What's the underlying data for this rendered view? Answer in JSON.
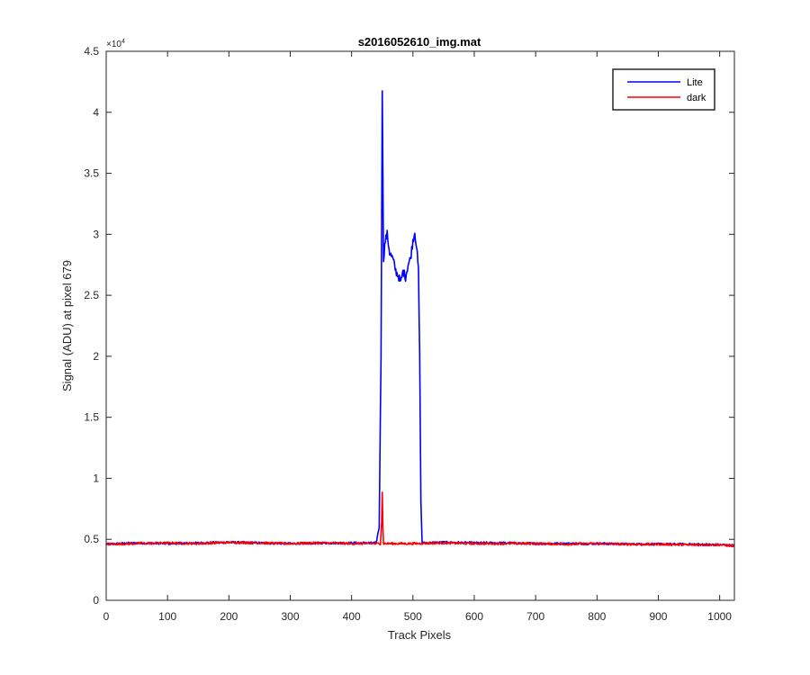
{
  "chart_data": {
    "type": "line",
    "title": "s2016052610_img.mat",
    "xlabel": "Track Pixels",
    "ylabel": "Signal (ADU) at pixel 679",
    "xlim": [
      0,
      1024
    ],
    "ylim": [
      0,
      45000
    ],
    "x_ticks": [
      0,
      100,
      200,
      300,
      400,
      500,
      600,
      700,
      800,
      900,
      1000
    ],
    "x_tick_labels": [
      "0",
      "100",
      "200",
      "300",
      "400",
      "500",
      "600",
      "700",
      "800",
      "900",
      "1000"
    ],
    "y_ticks": [
      0,
      5000,
      10000,
      15000,
      20000,
      25000,
      30000,
      35000,
      40000,
      45000
    ],
    "y_tick_labels": [
      "0",
      "0.5",
      "1",
      "1.5",
      "2",
      "2.5",
      "3",
      "3.5",
      "4",
      "4.5"
    ],
    "y_exponent_base": "×10",
    "y_exponent_power": "4",
    "grid": false,
    "legend_position": "top-right",
    "series": [
      {
        "name": "Lite",
        "color": "#0000ff",
        "points": [
          [
            0,
            4600
          ],
          [
            50,
            4700
          ],
          [
            100,
            4650
          ],
          [
            150,
            4700
          ],
          [
            200,
            4750
          ],
          [
            250,
            4700
          ],
          [
            300,
            4650
          ],
          [
            350,
            4700
          ],
          [
            400,
            4700
          ],
          [
            440,
            4700
          ],
          [
            445,
            6000
          ],
          [
            448,
            20000
          ],
          [
            450,
            42000
          ],
          [
            452,
            28000
          ],
          [
            455,
            29500
          ],
          [
            458,
            30000
          ],
          [
            462,
            28500
          ],
          [
            467,
            28000
          ],
          [
            472,
            27000
          ],
          [
            477,
            26500
          ],
          [
            480,
            26000
          ],
          [
            484,
            27000
          ],
          [
            488,
            26500
          ],
          [
            492,
            27500
          ],
          [
            496,
            28000
          ],
          [
            500,
            29500
          ],
          [
            503,
            30200
          ],
          [
            506,
            29000
          ],
          [
            509,
            27000
          ],
          [
            511,
            20000
          ],
          [
            513,
            8000
          ],
          [
            515,
            4700
          ],
          [
            550,
            4750
          ],
          [
            600,
            4700
          ],
          [
            650,
            4700
          ],
          [
            700,
            4650
          ],
          [
            750,
            4650
          ],
          [
            800,
            4650
          ],
          [
            850,
            4600
          ],
          [
            900,
            4600
          ],
          [
            950,
            4600
          ],
          [
            1000,
            4550
          ],
          [
            1024,
            4500
          ]
        ]
      },
      {
        "name": "dark",
        "color": "#ff0000",
        "points": [
          [
            0,
            4600
          ],
          [
            50,
            4650
          ],
          [
            100,
            4700
          ],
          [
            150,
            4650
          ],
          [
            200,
            4750
          ],
          [
            250,
            4700
          ],
          [
            300,
            4650
          ],
          [
            350,
            4700
          ],
          [
            400,
            4650
          ],
          [
            447,
            4650
          ],
          [
            449,
            6500
          ],
          [
            450,
            8900
          ],
          [
            451,
            6000
          ],
          [
            452,
            4650
          ],
          [
            500,
            4650
          ],
          [
            550,
            4700
          ],
          [
            600,
            4650
          ],
          [
            650,
            4650
          ],
          [
            700,
            4650
          ],
          [
            750,
            4600
          ],
          [
            800,
            4650
          ],
          [
            850,
            4600
          ],
          [
            900,
            4600
          ],
          [
            950,
            4550
          ],
          [
            1000,
            4550
          ],
          [
            1024,
            4450
          ]
        ]
      }
    ]
  }
}
